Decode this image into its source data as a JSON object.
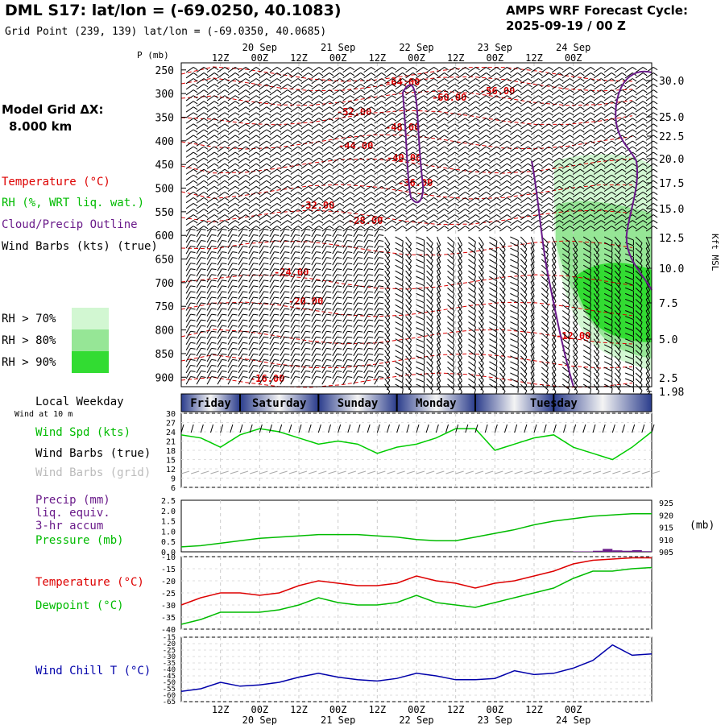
{
  "header": {
    "title": "DML S17:  lat/lon = (-69.0250, 40.1083)",
    "grid_point": "Grid Point (239, 139) lat/lon = (-69.0350, 40.0685)",
    "cycle_title": "AMPS WRF Forecast Cycle:",
    "cycle_time": "2025-09-19 / 00  Z"
  },
  "legend": {
    "model_grid": "Model Grid ΔX:",
    "model_grid_value": "8.000 km",
    "temperature": "Temperature (°C)",
    "rh": "RH (%, WRT liq. wat.)",
    "cloud": "Cloud/Precip Outline",
    "wind": "Wind Barbs (kts) (true)",
    "rh70": "RH > 70%",
    "rh80": "RH > 80%",
    "rh90": "RH > 90%",
    "rh70_color": "#d2f7d2",
    "rh80_color": "#96e696",
    "rh90_color": "#32dc32"
  },
  "colors": {
    "temperature": "#dd0000",
    "dewpoint": "#00bb00",
    "wind_speed": "#00cc00",
    "cloud": "#6a1b8a",
    "precip": "#6a1b8a",
    "windchill": "#0000aa",
    "grid_barbs": "#aaaaaa",
    "weekday_bar": "#3c4fa0"
  },
  "time_axis": {
    "top_ticks": [
      "12Z",
      "00Z",
      "12Z",
      "00Z",
      "12Z",
      "00Z",
      "12Z",
      "00Z",
      "12Z",
      "00Z"
    ],
    "top_dates": [
      "20 Sep",
      "21 Sep",
      "22 Sep",
      "23 Sep",
      "24 Sep"
    ],
    "bottom_ticks": [
      "12Z",
      "00Z",
      "12Z",
      "00Z",
      "12Z",
      "00Z",
      "12Z",
      "00Z",
      "12Z",
      "00Z"
    ],
    "bottom_dates": [
      "20 Sep",
      "21 Sep",
      "22 Sep",
      "23 Sep",
      "24 Sep"
    ]
  },
  "weekday": {
    "label": "Local Weekday",
    "sublabel": "Wind at 10 m",
    "days": [
      "Friday",
      "Saturday",
      "Sunday",
      "Monday",
      "Tuesday"
    ]
  },
  "chart_data": [
    {
      "type": "line",
      "panel": "cross-section",
      "title": "",
      "ylabel_left": "P (mb)",
      "ylabel_right": "Kft MSL",
      "pressure_ticks": [
        250,
        300,
        350,
        400,
        450,
        500,
        550,
        600,
        650,
        700,
        750,
        800,
        850,
        900
      ],
      "height_ticks": [
        "30.0",
        "25.0",
        "22.5",
        "20.0",
        "17.5",
        "15.0",
        "12.5",
        "10.0",
        "7.5",
        "5.0",
        "2.5",
        "1.98"
      ],
      "temperature_contour_labels": [
        "-64.00",
        "-60.00",
        "-56.00",
        "-52.00",
        "-48.00",
        "-44.00",
        "-40.00",
        "-36.00",
        "-32.00",
        "-28.00",
        "-24.00",
        "-20.00",
        "-16.00",
        "-12.00"
      ],
      "legend": [
        "Temperature (°C)",
        "RH (%, WRT liq. wat.)",
        "Cloud/Precip Outline",
        "Wind Barbs (kts) (true)"
      ]
    },
    {
      "type": "line",
      "panel": "wind",
      "yticks": [
        6,
        9,
        12,
        15,
        18,
        21,
        24,
        27,
        30
      ],
      "ylim": [
        6,
        30
      ],
      "x_hours": [
        0,
        6,
        12,
        18,
        24,
        30,
        36,
        42,
        48,
        54,
        60,
        66,
        72,
        78,
        84,
        90,
        96,
        102,
        108,
        114,
        120,
        126,
        132,
        138,
        144
      ],
      "series": [
        {
          "name": "Wind Spd (kts)",
          "values": [
            23,
            22,
            19,
            23,
            25,
            24,
            22,
            20,
            21,
            20,
            17,
            19,
            20,
            22,
            25,
            25,
            18,
            20,
            22,
            23,
            19,
            17,
            15,
            19,
            24
          ]
        }
      ],
      "legend": [
        "Wind Spd (kts)",
        "Wind Barbs (true)",
        "Wind Barbs (grid)"
      ]
    },
    {
      "type": "line",
      "panel": "precip-pressure",
      "yticks_left": [
        "0.0",
        "0.5",
        "1.0",
        "1.5",
        "2.0",
        "2.5"
      ],
      "ylim_left": [
        0,
        2.5
      ],
      "yticks_right": [
        905,
        910,
        915,
        920,
        925
      ],
      "ylim_right": [
        905,
        926
      ],
      "ylabel_right": "(mb)",
      "x_hours": [
        0,
        6,
        12,
        18,
        24,
        30,
        36,
        42,
        48,
        54,
        60,
        66,
        72,
        78,
        84,
        90,
        96,
        102,
        108,
        114,
        120,
        126,
        132,
        138,
        144
      ],
      "series": [
        {
          "name": "Pressure (mb)",
          "values": [
            907,
            907.5,
            908.5,
            909.5,
            910.5,
            911,
            911.5,
            912,
            912,
            912,
            911.5,
            911,
            910,
            909.5,
            909.5,
            911,
            912.5,
            914,
            916,
            917.5,
            918.5,
            919.5,
            920,
            920.5,
            920.5
          ]
        }
      ],
      "precip_bars": [
        0.02,
        0.02,
        0.05,
        0.14,
        0.07,
        0.05,
        0.08,
        0.03
      ],
      "legend": [
        "Precip (mm)",
        "liq. equiv.",
        "3-hr accum",
        "Pressure (mb)"
      ]
    },
    {
      "type": "line",
      "panel": "temperature",
      "yticks": [
        -40,
        -35,
        -30,
        -25,
        -20,
        -15,
        -10
      ],
      "ylim": [
        -40,
        -10
      ],
      "x_hours": [
        0,
        6,
        12,
        18,
        24,
        30,
        36,
        42,
        48,
        54,
        60,
        66,
        72,
        78,
        84,
        90,
        96,
        102,
        108,
        114,
        120,
        126,
        132,
        138,
        144
      ],
      "series": [
        {
          "name": "Temperature (°C)",
          "values": [
            -30,
            -27,
            -25,
            -25,
            -26,
            -25,
            -22,
            -20,
            -21,
            -22,
            -22,
            -21,
            -18,
            -20,
            -21,
            -23,
            -21,
            -20,
            -18,
            -16,
            -13,
            -11.5,
            -11,
            -10.5,
            -10.5
          ]
        },
        {
          "name": "Dewpoint (°C)",
          "values": [
            -38,
            -36,
            -33,
            -33,
            -33,
            -32,
            -30,
            -27,
            -29,
            -30,
            -30,
            -29,
            -26,
            -29,
            -30,
            -31,
            -29,
            -27,
            -25,
            -23,
            -19,
            -16,
            -16,
            -15,
            -14.5
          ]
        }
      ]
    },
    {
      "type": "line",
      "panel": "windchill",
      "yticks": [
        -15,
        -20,
        -25,
        -30,
        -35,
        -40,
        -45,
        -50,
        -55,
        -60,
        -65
      ],
      "ylim": [
        -65,
        -15
      ],
      "x_hours": [
        0,
        6,
        12,
        18,
        24,
        30,
        36,
        42,
        48,
        54,
        60,
        66,
        72,
        78,
        84,
        90,
        96,
        102,
        108,
        114,
        120,
        126,
        132,
        138,
        144
      ],
      "series": [
        {
          "name": "Wind Chill T (°C)",
          "values": [
            -57,
            -55,
            -50,
            -53,
            -52,
            -50,
            -46,
            -43,
            -46,
            -48,
            -49,
            -47,
            -43,
            -45,
            -48,
            -48,
            -47,
            -41,
            -44,
            -43,
            -39,
            -33,
            -21,
            -29,
            -28
          ]
        }
      ]
    }
  ]
}
